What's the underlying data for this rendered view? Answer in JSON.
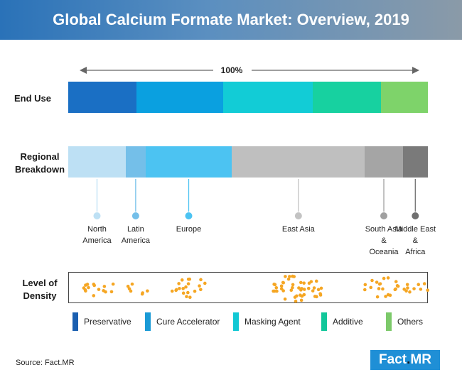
{
  "header": {
    "title": "Global Calcium Formate Market: Overview, 2019"
  },
  "labels": {
    "end_use": "End Use",
    "regional": [
      "Regional",
      "Breakdown"
    ],
    "density": [
      "Level of",
      "Density"
    ],
    "percent": "100%"
  },
  "chart_data": [
    {
      "type": "bar",
      "title": "End Use",
      "stacked": true,
      "categories": [
        "Preservative",
        "Cure Accelerator",
        "Masking Agent",
        "Additive",
        "Others"
      ],
      "values": [
        19,
        24,
        25,
        19,
        13
      ],
      "unit": "%",
      "colors": [
        "#1a6fc4",
        "#0aa0e0",
        "#12ccd6",
        "#17d1a0",
        "#7ed36a"
      ]
    },
    {
      "type": "bar",
      "title": "Regional Breakdown",
      "stacked": true,
      "categories": [
        "North America",
        "Latin America",
        "Europe",
        "East Asia",
        "South Asia & Oceania",
        "Middle East & Africa"
      ],
      "label_lines": [
        [
          "North",
          "America"
        ],
        [
          "Latin",
          "America"
        ],
        [
          "Europe"
        ],
        [
          "East Asia"
        ],
        [
          "South Asia",
          "&",
          "Oceania"
        ],
        [
          "Middle East",
          "&",
          "Africa"
        ]
      ],
      "values": [
        16,
        5.5,
        24,
        37,
        10.5,
        7
      ],
      "unit": "%",
      "colors": [
        "#bde0f4",
        "#74bfe9",
        "#4cc3f2",
        "#bfbfbf",
        "#a5a5a5",
        "#7a7a7a"
      ],
      "marker_colors": [
        "#bde0f4",
        "#74bfe9",
        "#4cc3f2",
        "#c3c3c3",
        "#a0a0a0",
        "#707070"
      ]
    },
    {
      "type": "scatter",
      "title": "Level of Density",
      "categories": [
        "North America",
        "Latin America",
        "Europe",
        "East Asia",
        "South Asia & Oceania",
        "Middle East & Africa"
      ],
      "dot_counts": [
        15,
        7,
        20,
        45,
        20,
        10
      ],
      "color": "#f5a623"
    }
  ],
  "legend": [
    {
      "label": "Preservative",
      "color": "#1a5fb0"
    },
    {
      "label": "Cure Accelerator",
      "color": "#1a9ad6"
    },
    {
      "label": "Masking Agent",
      "color": "#12c8d4"
    },
    {
      "label": "Additive",
      "color": "#12c79a"
    },
    {
      "label": "Others",
      "color": "#7cc96a"
    }
  ],
  "source": "Source: Fact.MR",
  "logo": {
    "text_main": "Fact",
    "text_dot": ".",
    "text_end": "MR"
  }
}
